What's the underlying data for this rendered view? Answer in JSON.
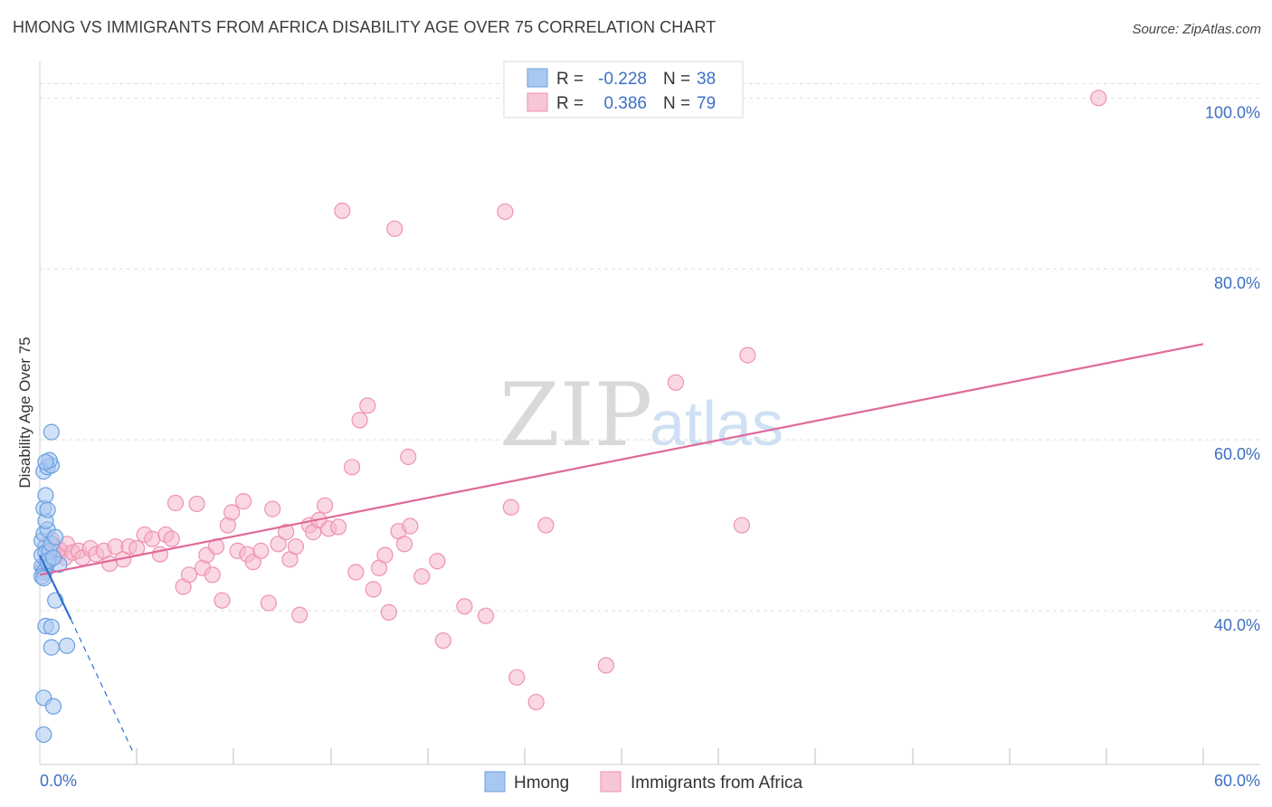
{
  "header": {
    "title": "HMONG VS IMMIGRANTS FROM AFRICA DISABILITY AGE OVER 75 CORRELATION CHART",
    "source": "Source: ZipAtlas.com"
  },
  "watermark": {
    "zip": "ZIP",
    "atlas": "atlas"
  },
  "colors": {
    "hmong_fill": "#a9c8f0",
    "hmong_stroke": "#6a9fe0",
    "hmong_line": "#2f6fcf",
    "africa_fill": "#f6b8cc",
    "africa_stroke": "#ee92b0",
    "africa_line": "#e0699a",
    "grid": "#dedede",
    "tick_label": "#3d6fc4"
  },
  "legend": {
    "rows": [
      {
        "r_label": "R =",
        "r_value": "-0.228",
        "n_label": "N =",
        "n_value": "38"
      },
      {
        "r_label": "R =",
        "r_value": "0.386",
        "n_label": "N =",
        "n_value": "79"
      }
    ]
  },
  "chart_data": {
    "type": "scatter",
    "title": "HMONG VS IMMIGRANTS FROM AFRICA DISABILITY AGE OVER 75 CORRELATION CHART",
    "xlabel": "",
    "ylabel": "Disability Age Over 75",
    "xlim": [
      0,
      60
    ],
    "ylim": [
      22,
      103
    ],
    "x_tick_labels": [
      "0.0%",
      "60.0%"
    ],
    "y_ticks": [
      40,
      60,
      80,
      100
    ],
    "y_tick_labels": [
      "40.0%",
      "60.0%",
      "80.0%",
      "100.0%"
    ],
    "legend_position": "top-center",
    "series": [
      {
        "name": "Hmong",
        "r": -0.228,
        "n": 38,
        "trend": {
          "x0": 0.0,
          "y0": 46.5,
          "x1": 1.6,
          "y1": 39.0,
          "dashed_to_x": 4.8,
          "dashed_to_y": 23.5
        },
        "points": [
          [
            0.2,
            45.0
          ],
          [
            0.3,
            44.8
          ],
          [
            0.1,
            45.2
          ],
          [
            0.4,
            45.5
          ],
          [
            0.2,
            44.5
          ],
          [
            0.5,
            46.0
          ],
          [
            0.3,
            47.5
          ],
          [
            0.1,
            48.2
          ],
          [
            0.2,
            49.0
          ],
          [
            0.4,
            49.5
          ],
          [
            0.3,
            50.5
          ],
          [
            0.2,
            52.0
          ],
          [
            0.4,
            51.8
          ],
          [
            0.3,
            53.5
          ],
          [
            0.2,
            56.3
          ],
          [
            0.4,
            56.8
          ],
          [
            0.6,
            57.0
          ],
          [
            0.5,
            57.6
          ],
          [
            0.3,
            57.4
          ],
          [
            0.6,
            60.9
          ],
          [
            0.1,
            46.5
          ],
          [
            0.3,
            46.8
          ],
          [
            0.5,
            47.0
          ],
          [
            0.6,
            47.8
          ],
          [
            0.8,
            48.6
          ],
          [
            1.0,
            45.4
          ],
          [
            0.1,
            44.0
          ],
          [
            0.2,
            43.8
          ],
          [
            0.8,
            41.2
          ],
          [
            0.3,
            38.2
          ],
          [
            0.6,
            38.1
          ],
          [
            0.6,
            35.7
          ],
          [
            1.4,
            35.9
          ],
          [
            0.2,
            29.8
          ],
          [
            0.7,
            28.8
          ],
          [
            0.2,
            25.5
          ],
          [
            0.4,
            45.8
          ],
          [
            0.7,
            46.2
          ]
        ]
      },
      {
        "name": "Immigrants from Africa",
        "r": 0.386,
        "n": 79,
        "trend": {
          "x0": 0.0,
          "y0": 44.2,
          "x1": 60.0,
          "y1": 71.2
        },
        "points": [
          [
            0.3,
            47.6
          ],
          [
            0.5,
            46.8
          ],
          [
            0.7,
            47.5
          ],
          [
            0.9,
            46.5
          ],
          [
            1.1,
            47.0
          ],
          [
            1.3,
            46.2
          ],
          [
            0.6,
            48.3
          ],
          [
            1.0,
            47.2
          ],
          [
            1.4,
            47.8
          ],
          [
            1.7,
            46.8
          ],
          [
            2.0,
            47.0
          ],
          [
            2.2,
            46.2
          ],
          [
            2.6,
            47.3
          ],
          [
            2.9,
            46.6
          ],
          [
            3.3,
            47.0
          ],
          [
            3.6,
            45.5
          ],
          [
            3.9,
            47.5
          ],
          [
            4.3,
            46.0
          ],
          [
            4.6,
            47.5
          ],
          [
            5.0,
            47.3
          ],
          [
            5.4,
            48.9
          ],
          [
            5.8,
            48.4
          ],
          [
            6.2,
            46.6
          ],
          [
            6.5,
            48.9
          ],
          [
            6.8,
            48.4
          ],
          [
            7.0,
            52.6
          ],
          [
            7.4,
            42.8
          ],
          [
            7.7,
            44.2
          ],
          [
            8.1,
            52.5
          ],
          [
            8.4,
            45.0
          ],
          [
            8.6,
            46.5
          ],
          [
            8.9,
            44.2
          ],
          [
            9.1,
            47.5
          ],
          [
            9.4,
            41.2
          ],
          [
            9.7,
            50.0
          ],
          [
            9.9,
            51.5
          ],
          [
            10.2,
            47.0
          ],
          [
            10.5,
            52.8
          ],
          [
            10.7,
            46.6
          ],
          [
            11.0,
            45.7
          ],
          [
            11.4,
            47.0
          ],
          [
            11.8,
            40.9
          ],
          [
            12.0,
            51.9
          ],
          [
            12.3,
            47.8
          ],
          [
            12.7,
            49.2
          ],
          [
            12.9,
            46.0
          ],
          [
            13.2,
            47.5
          ],
          [
            13.4,
            39.5
          ],
          [
            13.9,
            50.0
          ],
          [
            14.1,
            49.2
          ],
          [
            14.4,
            50.6
          ],
          [
            14.7,
            52.3
          ],
          [
            14.9,
            49.6
          ],
          [
            15.4,
            49.8
          ],
          [
            15.6,
            86.8
          ],
          [
            16.1,
            56.8
          ],
          [
            16.3,
            44.5
          ],
          [
            16.5,
            62.3
          ],
          [
            16.9,
            64.0
          ],
          [
            17.2,
            42.5
          ],
          [
            17.5,
            45.0
          ],
          [
            17.8,
            46.5
          ],
          [
            18.0,
            39.8
          ],
          [
            18.3,
            84.7
          ],
          [
            18.5,
            49.3
          ],
          [
            19.1,
            49.9
          ],
          [
            18.8,
            47.8
          ],
          [
            20.5,
            45.8
          ],
          [
            19.7,
            44.0
          ],
          [
            19.0,
            58.0
          ],
          [
            20.8,
            36.5
          ],
          [
            21.9,
            40.5
          ],
          [
            23.0,
            39.4
          ],
          [
            24.0,
            86.7
          ],
          [
            24.3,
            52.1
          ],
          [
            24.6,
            32.2
          ],
          [
            25.6,
            29.3
          ],
          [
            26.1,
            50.0
          ],
          [
            29.2,
            33.6
          ]
        ],
        "extra_points": [
          [
            32.8,
            66.7
          ],
          [
            36.2,
            50.0
          ],
          [
            36.5,
            69.9
          ],
          [
            54.6,
            100.0
          ]
        ]
      }
    ]
  },
  "bottom_legend": {
    "items": [
      {
        "label": "Hmong"
      },
      {
        "label": "Immigrants from Africa"
      }
    ]
  }
}
